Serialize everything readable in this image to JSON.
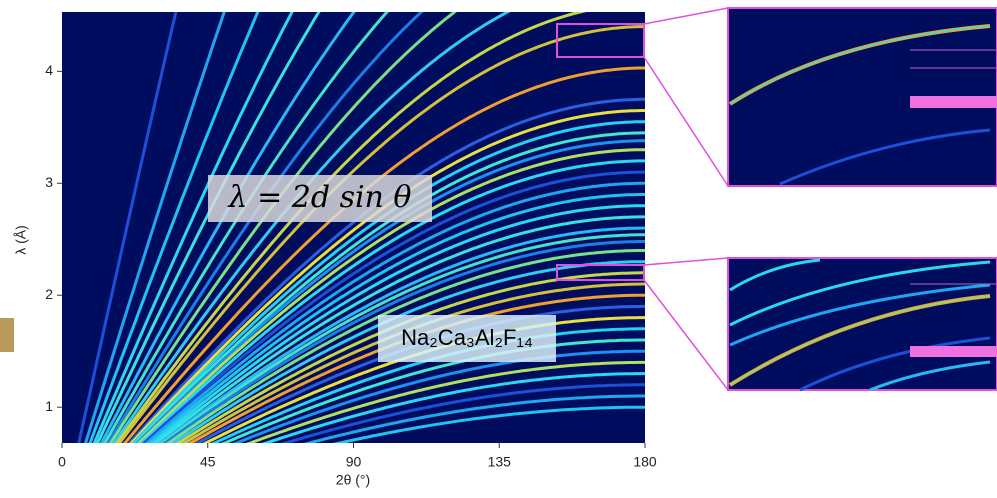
{
  "chart_data": {
    "type": "bragg",
    "formula": "λ = 2d sin θ",
    "compound": "Na₂Ca₃Al₂F₁₄",
    "x_label": "2θ (°)",
    "y_label": "λ (Å)",
    "xlim": [
      0,
      180
    ],
    "ylim": [
      0.68,
      4.53
    ],
    "xticks": [
      0,
      45,
      90,
      135,
      180
    ],
    "yticks": [
      1,
      2,
      3,
      4
    ],
    "background": "#000d5e",
    "d": [
      7.5,
      5.35,
      4.5,
      3.9,
      3.55,
      3.2,
      2.95,
      2.75,
      2.6,
      2.43,
      2.3,
      2.2,
      2.015,
      1.875,
      1.825,
      1.775,
      1.725,
      1.69,
      1.65,
      1.6,
      1.55,
      1.5,
      1.45,
      1.4,
      1.35,
      1.3,
      1.27,
      1.24,
      1.2,
      1.15,
      1.1,
      1.05,
      1.0,
      0.95,
      0.9,
      0.85,
      0.8,
      0.75,
      0.7,
      0.65,
      0.6,
      0.55,
      0.5
    ],
    "colors": [
      "#1e4fd8",
      "#1fa6f0",
      "#20c4f2",
      "#2bd8f0",
      "#3de0e0",
      "#2ab8f5",
      "#48e0c8",
      "#1c7fe8",
      "#7be08a",
      "#33c9f0",
      "#c6d84a",
      "#d4c03c",
      "#f0a030",
      "#2a60e0",
      "#e8e040",
      "#25d0f0",
      "#40e8d0",
      "#1d90f0",
      "#b0e060",
      "#2ad8f4"
    ]
  }
}
